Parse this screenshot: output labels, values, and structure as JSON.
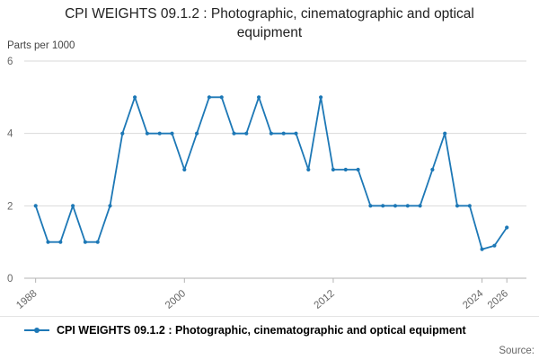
{
  "title": "CPI WEIGHTS 09.1.2 : Photographic, cinematographic and optical equipment",
  "y_axis_unit": "Parts per 1000",
  "source_label": "Source:",
  "legend": {
    "label": "CPI WEIGHTS 09.1.2 : Photographic, cinematographic and optical equipment"
  },
  "colors": {
    "line": "#1d78b6",
    "grid": "#d9d9d9",
    "axis": "#b3b3b3",
    "tick_text": "#666666"
  },
  "chart_data": {
    "type": "line",
    "title": "CPI WEIGHTS 09.1.2 : Photographic, cinematographic and optical equipment",
    "xlabel": "",
    "ylabel": "Parts per 1000",
    "ylim": [
      0,
      6
    ],
    "yticks": [
      0,
      2,
      4,
      6
    ],
    "xticks": [
      1988,
      2000,
      2012,
      2024,
      2026
    ],
    "grid": true,
    "legend_position": "bottom",
    "x": [
      1988,
      1989,
      1990,
      1991,
      1992,
      1993,
      1994,
      1995,
      1996,
      1997,
      1998,
      1999,
      2000,
      2001,
      2002,
      2003,
      2004,
      2005,
      2006,
      2007,
      2008,
      2009,
      2010,
      2011,
      2012,
      2013,
      2014,
      2015,
      2016,
      2017,
      2018,
      2019,
      2020,
      2021,
      2022,
      2023,
      2024,
      2025,
      2026
    ],
    "series": [
      {
        "name": "CPI WEIGHTS 09.1.2 : Photographic, cinematographic and optical equipment",
        "values": [
          2,
          1,
          1,
          2,
          1,
          1,
          2,
          4,
          5,
          4,
          4,
          4,
          3,
          4,
          5,
          5,
          4,
          4,
          5,
          4,
          4,
          4,
          3,
          5,
          3,
          3,
          3,
          2,
          2,
          2,
          2,
          2,
          3,
          4,
          2,
          2,
          0.8,
          0.9,
          1.4
        ]
      }
    ]
  }
}
